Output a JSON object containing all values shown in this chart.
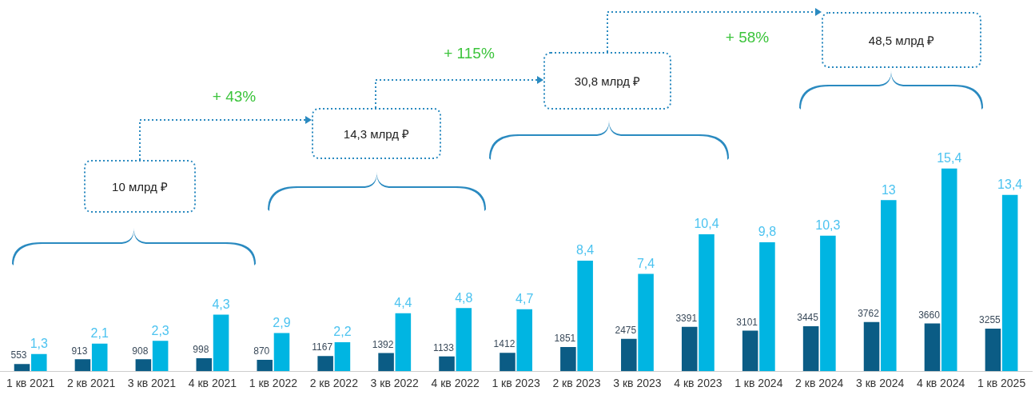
{
  "chart_data": {
    "type": "bar",
    "categories": [
      "1 кв 2021",
      "2 кв 2021",
      "3 кв 2021",
      "4 кв 2021",
      "1 кв 2022",
      "2 кв 2022",
      "3 кв 2022",
      "4 кв 2022",
      "1 кв 2023",
      "2 кв 2023",
      "3 кв 2023",
      "4 кв 2023",
      "1 кв 2024",
      "2 кв 2024",
      "3 кв 2024",
      "4 кв 2024",
      "1 кв 2025"
    ],
    "series": [
      {
        "color": "#0b5c85",
        "axis": "y2",
        "values": [
          553,
          913,
          908,
          998,
          870,
          1167,
          1392,
          1133,
          1412,
          1851,
          2475,
          3391,
          3101,
          3445,
          3762,
          3660,
          3255
        ],
        "value_labels": [
          "553",
          "913",
          "908",
          "998",
          "870",
          "1167",
          "1392",
          "1133",
          "1412",
          "1851",
          "2475",
          "3391",
          "3101",
          "3445",
          "3762",
          "3660",
          "3255"
        ]
      },
      {
        "color": "#00b5e2",
        "values": [
          1.3,
          2.1,
          2.3,
          4.3,
          2.9,
          2.2,
          4.4,
          4.8,
          4.7,
          8.4,
          7.4,
          10.4,
          9.8,
          10.3,
          13,
          15.4,
          13.4
        ],
        "value_labels": [
          "1,3",
          "2,1",
          "2,3",
          "4,3",
          "2,9",
          "2,2",
          "4,4",
          "4,8",
          "4,7",
          "8,4",
          "7,4",
          "10,4",
          "9,8",
          "10,3",
          "13",
          "15,4",
          "13,4"
        ]
      }
    ],
    "ylim": [
      0,
      27.3
    ],
    "y2lim": [
      0,
      27500
    ],
    "grid": false,
    "legend": false,
    "annotations": [
      "10 млрд ₽",
      "+ 43%",
      "14,3 млрд ₽",
      "+ 115%",
      "30,8 млрд ₽",
      "+ 58%",
      "48,5 млрд ₽"
    ]
  }
}
